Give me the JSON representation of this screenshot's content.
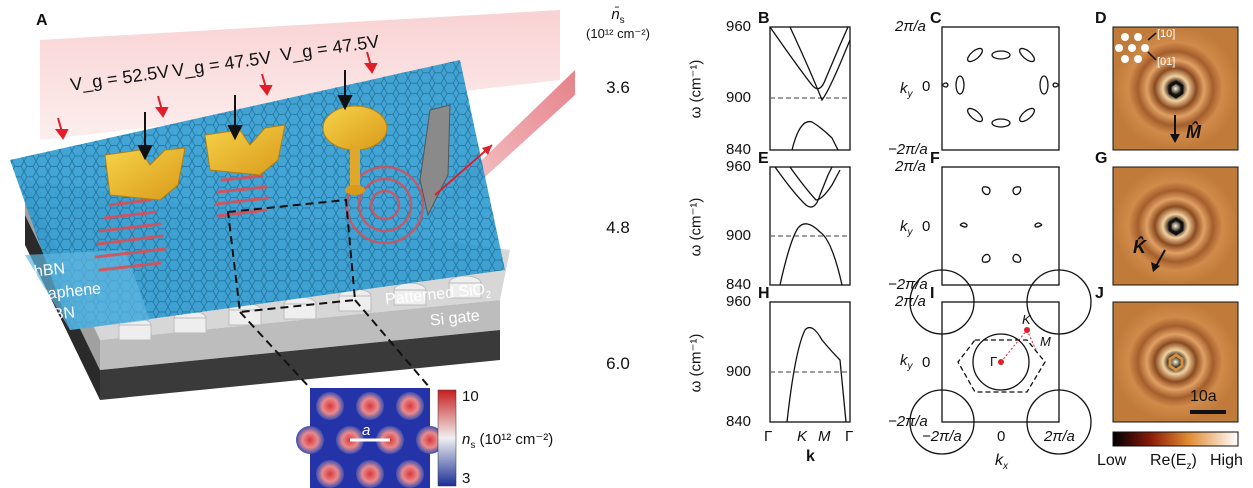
{
  "panel_labels": {
    "A": "A",
    "B": "B",
    "C": "C",
    "D": "D",
    "E": "E",
    "F": "F",
    "G": "G",
    "H": "H",
    "I": "I",
    "J": "J"
  },
  "gate_labels": [
    "V_g = 52.5V",
    "V_g = 47.5V",
    "V_g = 47.5V"
  ],
  "layer_labels": {
    "hbn_top": "hBN",
    "graphene": "Graphene",
    "hbn_bottom": "hBN",
    "patterned": "Patterned SiO",
    "patterned_sub": "2",
    "si_gate": "Si gate"
  },
  "density_column": {
    "header": "n̄",
    "header_sub": "s",
    "unit": "(10¹² cm⁻²)",
    "values": [
      "3.6",
      "4.8",
      "6.0"
    ]
  },
  "inset_colorbar": {
    "max": "10",
    "min": "3",
    "label": "n",
    "label_sub": "s",
    "unit": "(10¹² cm⁻²)",
    "lattice_const": "a"
  },
  "band_axes": {
    "y_ticks": [
      "960",
      "900",
      "840"
    ],
    "y_label": "ω (cm⁻¹)",
    "x_ticks": [
      "Γ",
      "K",
      "M",
      "Γ"
    ],
    "x_label": "k"
  },
  "contour_axes": {
    "y_ticks": [
      "2π/a",
      "0",
      "−2π/a"
    ],
    "y_label": "k",
    "y_label_sub": "y",
    "x_ticks": [
      "−2π/a",
      "0",
      "2π/a"
    ],
    "x_label": "k",
    "x_label_sub": "x",
    "points": {
      "gamma": "Γ",
      "k": "K",
      "m": "M"
    }
  },
  "field_maps": {
    "dir_10": "[10]",
    "dir_01": "[01]",
    "arrow_M": "M̂",
    "arrow_K": "K̂",
    "scalebar": "10a"
  },
  "field_colorbar": {
    "low": "Low",
    "mid": "Re(E",
    "mid_sub": "z",
    "mid_end": ")",
    "high": "High"
  },
  "colors": {
    "laser": "#f0a3a8",
    "sheet": "#2d9bd0",
    "gold": "#e9b22a",
    "dash": "#666666",
    "map_bg": "#c07a3a"
  }
}
